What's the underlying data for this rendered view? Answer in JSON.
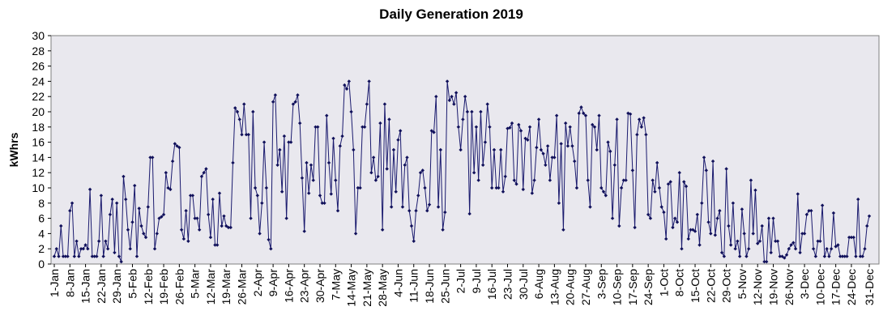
{
  "chart_data": {
    "type": "line",
    "title": "Daily Generation 2019",
    "xlabel": "",
    "ylabel": "kWhrs",
    "ylim": [
      0,
      30
    ],
    "y_ticks": [
      0,
      2,
      4,
      6,
      8,
      10,
      12,
      14,
      16,
      18,
      20,
      22,
      24,
      26,
      28,
      30
    ],
    "grid": false,
    "legend": "none",
    "colors": {
      "plot_background": "#e9e8ee",
      "line": "#1a1a6e",
      "marker": "#10105a"
    },
    "x_tick_labels": [
      "1-Jan",
      "8-Jan",
      "15-Jan",
      "22-Jan",
      "29-Jan",
      "5-Feb",
      "12-Feb",
      "19-Feb",
      "26-Feb",
      "5-Mar",
      "12-Mar",
      "19-Mar",
      "26-Mar",
      "2-Apr",
      "9-Apr",
      "16-Apr",
      "23-Apr",
      "30-Apr",
      "7-May",
      "14-May",
      "21-May",
      "28-May",
      "4-Jun",
      "11-Jun",
      "18-Jun",
      "25-Jun",
      "2-Jul",
      "9-Jul",
      "16-Jul",
      "23-Jul",
      "30-Jul",
      "6-Aug",
      "13-Aug",
      "20-Aug",
      "27-Aug",
      "3-Sep",
      "10-Sep",
      "17-Sep",
      "24-Sep",
      "1-Oct",
      "8-Oct",
      "15-Oct",
      "22-Oct",
      "29-Oct",
      "5-Nov",
      "12-Nov",
      "19-Nov",
      "26-Nov",
      "3-Dec",
      "10-Dec",
      "17-Dec",
      "24-Dec",
      "31-Dec"
    ],
    "x_start": "1-Jan",
    "x_end": "31-Dec",
    "values": [
      1,
      2,
      1,
      5,
      1,
      1,
      1,
      7,
      8,
      1,
      3,
      1,
      2,
      2,
      2.5,
      2,
      9.8,
      1,
      1,
      1,
      3,
      9,
      1,
      3,
      2,
      6.5,
      8.5,
      1.5,
      8,
      1,
      0.3,
      11.5,
      8.5,
      4.5,
      2,
      5.5,
      10.3,
      1,
      7.3,
      5,
      4,
      3.5,
      7.5,
      14,
      14,
      2,
      4,
      6,
      6.2,
      6.5,
      12,
      10,
      9.8,
      13.5,
      15.8,
      15.5,
      15.3,
      4.5,
      3.3,
      7,
      3,
      9,
      9,
      6,
      6,
      4.5,
      11.5,
      12,
      12.5,
      6.5,
      3.5,
      8.5,
      2.5,
      2.5,
      9.3,
      5,
      6.3,
      5,
      4.8,
      4.8,
      13.3,
      20.5,
      20,
      19,
      17,
      21,
      17,
      17,
      6,
      20,
      10,
      9,
      4,
      8,
      16,
      10,
      3.2,
      2,
      21.3,
      22.2,
      13,
      15,
      9.5,
      16.8,
      6,
      16,
      16,
      21,
      21.3,
      22.2,
      18.5,
      11.3,
      4.3,
      13.3,
      9.3,
      13,
      11,
      18,
      18,
      9,
      8,
      8,
      19.5,
      13.3,
      9.2,
      16.5,
      11,
      7,
      15.5,
      16.8,
      23.5,
      23,
      24,
      20,
      15,
      4,
      10,
      10,
      18,
      18,
      21,
      24,
      12,
      14,
      11,
      11.5,
      18.5,
      4.5,
      21,
      12.5,
      19,
      7.5,
      15,
      9.5,
      16.3,
      17.5,
      7.5,
      13,
      14,
      7,
      5,
      3,
      7,
      9,
      12,
      12.3,
      10,
      7,
      7.8,
      17.5,
      17.3,
      22,
      7.5,
      15,
      4.5,
      6.8,
      24,
      21.5,
      22,
      21,
      22.5,
      18,
      15,
      19,
      22,
      20,
      6.6,
      20,
      12,
      18,
      11,
      20,
      13,
      16,
      21,
      18,
      10,
      15,
      10,
      10,
      15,
      9.5,
      11.5,
      17.8,
      17.9,
      18.5,
      11,
      10.5,
      18.3,
      17.5,
      9.8,
      16.5,
      16.3,
      18,
      9.3,
      11,
      15.3,
      19,
      15,
      14.5,
      13,
      15.5,
      11,
      14,
      14,
      19.5,
      8,
      15.8,
      4.5,
      18.5,
      15.5,
      18,
      15.5,
      13.5,
      10,
      19.8,
      20.6,
      19.8,
      19.5,
      11,
      7.5,
      18.3,
      18,
      15,
      19.5,
      10,
      9.5,
      9,
      16,
      14.8,
      6,
      13,
      19,
      5,
      10,
      11,
      11,
      19.8,
      19.7,
      12.3,
      4.8,
      17,
      19,
      18,
      19.2,
      17,
      6.5,
      6,
      11,
      9.5,
      13.3,
      10,
      7.5,
      6.8,
      3.3,
      10.5,
      10.8,
      4.8,
      6,
      5.5,
      12,
      2,
      10.8,
      10.2,
      3.3,
      4.5,
      4.5,
      4.3,
      6.5,
      2.5,
      8,
      14,
      12.3,
      5.5,
      4,
      13.5,
      3.8,
      6,
      7,
      1.5,
      1,
      12.5,
      5,
      2.5,
      8,
      2,
      3,
      1,
      7.2,
      4,
      1,
      2,
      11,
      4,
      9.7,
      2.7,
      3,
      5,
      0.3,
      0.3,
      6,
      1.5,
      6,
      3,
      3,
      1,
      1,
      0.8,
      1.2,
      2,
      2.5,
      2.8,
      2,
      9.2,
      1.5,
      4,
      4,
      6.5,
      7,
      7,
      2,
      1,
      3,
      3,
      7.7,
      1,
      2,
      1,
      2,
      6.7,
      2.3,
      2.5,
      1,
      1,
      1,
      1,
      3.5,
      3.5,
      3.5,
      1,
      8.5,
      1,
      1,
      2,
      5,
      6.3
    ]
  }
}
